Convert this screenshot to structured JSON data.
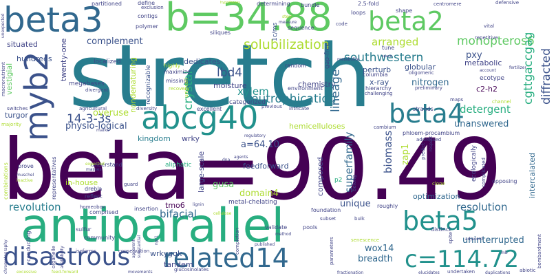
{
  "palette": {
    "dark_purple": "#440154",
    "indigo": "#3b528b",
    "blue": "#31688e",
    "teal": "#287d8e",
    "teal_green": "#21918c",
    "green": "#28ae80",
    "light_green": "#5ec962",
    "yellow_green": "#addc30",
    "yellow": "#fde725",
    "grey_blue": "#414487"
  },
  "words": [
    {
      "text": "stretch",
      "color": "#287d8e",
      "size": 126
    },
    {
      "text": "beta=90.49",
      "color": "#440154",
      "size": 120
    },
    {
      "text": "antiparallel",
      "color": "#28ae80",
      "size": 70
    },
    {
      "text": "beta3",
      "color": "#31688e",
      "size": 52
    },
    {
      "text": "b=34.88",
      "color": "#5ec962",
      "size": 56
    },
    {
      "text": "abcg40",
      "color": "#21918c",
      "size": 48
    },
    {
      "text": "myb2",
      "color": "#3b528b",
      "size": 48
    },
    {
      "text": "beta2",
      "color": "#5ec962",
      "size": 40
    },
    {
      "text": "beta4",
      "color": "#287d8e",
      "size": 40
    },
    {
      "text": "beta5",
      "color": "#21918c",
      "size": 40
    },
    {
      "text": "disastrous",
      "color": "#3b528b",
      "size": 40
    },
    {
      "text": "related14",
      "color": "#31688e",
      "size": 40
    },
    {
      "text": "c=114.72",
      "color": "#21918c",
      "size": 36
    },
    {
      "text": "monopteros6",
      "color": "#5ec962",
      "size": 18
    },
    {
      "text": "solubilization",
      "color": "#addc30",
      "size": 20
    },
    {
      "text": "southwestern",
      "color": "#287d8e",
      "size": 18
    },
    {
      "text": "cgttgaccgag",
      "color": "#28ae80",
      "size": 18
    },
    {
      "text": "diffracted",
      "color": "#3b528b",
      "size": 18
    },
    {
      "text": "arranged",
      "color": "#addc30",
      "size": 16
    },
    {
      "text": "metabolic",
      "color": "#414487",
      "size": 12
    },
    {
      "text": "pxy",
      "color": "#3b528b",
      "size": 14
    },
    {
      "text": "eutrophication",
      "color": "#287d8e",
      "size": 18
    },
    {
      "text": "lbd4",
      "color": "#3b528b",
      "size": 18
    },
    {
      "text": "xylem",
      "color": "#21918c",
      "size": 16
    },
    {
      "text": "moisture",
      "color": "#414487",
      "size": 12
    },
    {
      "text": "chemistry",
      "color": "#414487",
      "size": 12
    },
    {
      "text": "perturb",
      "color": "#3b528b",
      "size": 12
    },
    {
      "text": "globular",
      "color": "#3b528b",
      "size": 12
    },
    {
      "text": "x-ray",
      "color": "#3b528b",
      "size": 12
    },
    {
      "text": "nitrogen",
      "color": "#31688e",
      "size": 14
    },
    {
      "text": "c2-h2",
      "color": "#440154",
      "size": 12
    },
    {
      "text": "ecotype",
      "color": "#414487",
      "size": 10
    },
    {
      "text": "detergent",
      "color": "#28ae80",
      "size": 16
    },
    {
      "text": "unanswered",
      "color": "#31688e",
      "size": 14
    },
    {
      "text": "hemicelluloses",
      "color": "#addc30",
      "size": 12
    },
    {
      "text": "14-3-3s",
      "color": "#3b528b",
      "size": 18
    },
    {
      "text": "physio-logical",
      "color": "#3b528b",
      "size": 14
    },
    {
      "text": "kingdom",
      "color": "#287d8e",
      "size": 12
    },
    {
      "text": "wrky",
      "color": "#414487",
      "size": 12
    },
    {
      "text": "a=64.10",
      "color": "#3b528b",
      "size": 14
    },
    {
      "text": "feedforward",
      "color": "#3b528b",
      "size": 12
    },
    {
      "text": "overuse",
      "color": "#addc30",
      "size": 14
    },
    {
      "text": "in-house",
      "color": "#addc30",
      "size": 12
    },
    {
      "text": "complement",
      "color": "#3b528b",
      "size": 14
    },
    {
      "text": "dedicates",
      "color": "#3b528b",
      "size": 12
    },
    {
      "text": "situated",
      "color": "#414487",
      "size": 12
    },
    {
      "text": "hundreds",
      "color": "#3b528b",
      "size": 12
    },
    {
      "text": "twenty-one",
      "color": "#414487",
      "size": 12
    },
    {
      "text": "vestigial",
      "color": "#5ec962",
      "size": 12
    },
    {
      "text": "crystal",
      "color": "#28ae80",
      "size": 18
    },
    {
      "text": "lineage",
      "color": "#31688e",
      "size": 18
    },
    {
      "text": "superfamily",
      "color": "#31688e",
      "size": 16
    },
    {
      "text": "biomass",
      "color": "#3b528b",
      "size": 16
    },
    {
      "text": "gusa",
      "color": "#5ec962",
      "size": 14
    },
    {
      "text": "domain4",
      "color": "#addc30",
      "size": 14
    },
    {
      "text": "revolution",
      "color": "#287d8e",
      "size": 16
    },
    {
      "text": "bifacial",
      "color": "#31688e",
      "size": 16
    },
    {
      "text": "resolution",
      "color": "#31688e",
      "size": 16
    },
    {
      "text": "uninterrupted",
      "color": "#31688e",
      "size": 14
    },
    {
      "text": "wox14",
      "color": "#31688e",
      "size": 14
    },
    {
      "text": "breadth",
      "color": "#31688e",
      "size": 14
    },
    {
      "text": "tandem",
      "color": "#414487",
      "size": 12
    },
    {
      "text": "wrkygqk",
      "color": "#3b528b",
      "size": 12
    },
    {
      "text": "tmo6",
      "color": "#440154",
      "size": 12
    },
    {
      "text": "large-scale",
      "color": "#414487",
      "size": 12
    },
    {
      "text": "composed",
      "color": "#414487",
      "size": 12
    },
    {
      "text": "unique",
      "color": "#3b528b",
      "size": 14
    },
    {
      "text": "zap1",
      "color": "#addc30",
      "size": 14
    },
    {
      "text": "optimization",
      "color": "#31688e",
      "size": 12
    },
    {
      "text": "ecologically",
      "color": "#414487",
      "size": 10
    },
    {
      "text": "intercalated",
      "color": "#31688e",
      "size": 12
    },
    {
      "text": "metal-chelating",
      "color": "#414487",
      "size": 10
    },
    {
      "text": "aliphatic",
      "color": "#28ae80",
      "size": 10
    },
    {
      "text": "p2",
      "color": "#28ae80",
      "size": 10
    },
    {
      "text": "nondenaturing",
      "color": "#addc30",
      "size": 12
    },
    {
      "text": "recognizable",
      "color": "#3b528b",
      "size": 10
    },
    {
      "text": "categorized",
      "color": "#414487",
      "size": 10
    },
    {
      "text": "gap-free",
      "color": "#414487",
      "size": 10
    },
    {
      "text": "partitioned",
      "color": "#414487",
      "size": 9
    },
    {
      "text": "define",
      "color": "#414487",
      "size": 9
    },
    {
      "text": "determining",
      "color": "#414487",
      "size": 9
    },
    {
      "text": "bundle",
      "color": "#414487",
      "size": 9
    },
    {
      "text": "2.5-fold",
      "color": "#414487",
      "size": 9
    },
    {
      "text": "centromere",
      "color": "#414487",
      "size": 8
    },
    {
      "text": "defensive",
      "color": "#414487",
      "size": 8
    },
    {
      "text": "vital",
      "color": "#414487",
      "size": 8
    },
    {
      "text": "polymer",
      "color": "#414487",
      "size": 9
    },
    {
      "text": "sequence",
      "color": "#414487",
      "size": 9
    },
    {
      "text": "loops",
      "color": "#414487",
      "size": 9
    },
    {
      "text": "shape",
      "color": "#414487",
      "size": 9
    },
    {
      "text": "code",
      "color": "#414487",
      "size": 8
    },
    {
      "text": "repetitive",
      "color": "#414487",
      "size": 8
    },
    {
      "text": "tune",
      "color": "#414487",
      "size": 9
    },
    {
      "text": "siliques",
      "color": "#414487",
      "size": 9
    },
    {
      "text": "contigs",
      "color": "#414487",
      "size": 9
    },
    {
      "text": "exclusion",
      "color": "#414487",
      "size": 8
    },
    {
      "text": "1c/ms",
      "color": "#3b528b",
      "size": 10
    },
    {
      "text": "megabases",
      "color": "#414487",
      "size": 10
    },
    {
      "text": "localized",
      "color": "#414487",
      "size": 10
    },
    {
      "text": "maximize",
      "color": "#414487",
      "size": 9
    },
    {
      "text": "missing",
      "color": "#414487",
      "size": 9
    },
    {
      "text": "random",
      "color": "#414487",
      "size": 9
    },
    {
      "text": "environment",
      "color": "#414487",
      "size": 9
    },
    {
      "text": "preliminary",
      "color": "#414487",
      "size": 8
    },
    {
      "text": "hierarchy",
      "color": "#414487",
      "size": 9
    },
    {
      "text": "challenging",
      "color": "#414487",
      "size": 8
    },
    {
      "text": "columbia",
      "color": "#414487",
      "size": 9
    },
    {
      "text": "oligomeric",
      "color": "#414487",
      "size": 8
    },
    {
      "text": "account",
      "color": "#414487",
      "size": 7
    },
    {
      "text": "fertilizer",
      "color": "#414487",
      "size": 7
    },
    {
      "text": "unexpected",
      "color": "#414487",
      "size": 7
    },
    {
      "text": "macronutrient",
      "color": "#414487",
      "size": 8
    },
    {
      "text": "divergent",
      "color": "#414487",
      "size": 8
    },
    {
      "text": "recovery",
      "color": "#addc30",
      "size": 8
    },
    {
      "text": "highly",
      "color": "#addc30",
      "size": 9
    },
    {
      "text": "unit-cell",
      "color": "#addc30",
      "size": 8
    },
    {
      "text": "metabolite",
      "color": "#414487",
      "size": 7
    },
    {
      "text": "stem",
      "color": "#addc30",
      "size": 7
    },
    {
      "text": "measure",
      "color": "#414487",
      "size": 7
    },
    {
      "text": "turgor",
      "color": "#3b528b",
      "size": 12
    },
    {
      "text": "switches",
      "color": "#414487",
      "size": 8
    },
    {
      "text": "majority",
      "color": "#addc30",
      "size": 8
    },
    {
      "text": "agricultural",
      "color": "#414487",
      "size": 8
    },
    {
      "text": "diversity",
      "color": "#414487",
      "size": 8
    },
    {
      "text": "excellent",
      "color": "#414487",
      "size": 9
    },
    {
      "text": "previous",
      "color": "#414487",
      "size": 8
    },
    {
      "text": "intricate",
      "color": "#414487",
      "size": 8
    },
    {
      "text": "strands",
      "color": "#414487",
      "size": 9
    },
    {
      "text": "maps",
      "color": "#414487",
      "size": 8
    },
    {
      "text": "channel",
      "color": "#addc30",
      "size": 8
    },
    {
      "text": "cambium",
      "color": "#414487",
      "size": 8
    },
    {
      "text": "phloem-procambium",
      "color": "#414487",
      "size": 9
    },
    {
      "text": "addressed",
      "color": "#414487",
      "size": 8
    },
    {
      "text": "predict",
      "color": "#414487",
      "size": 8
    },
    {
      "text": "respect",
      "color": "#414487",
      "size": 7
    },
    {
      "text": "regulatory",
      "color": "#414487",
      "size": 7
    },
    {
      "text": "agents",
      "color": "#414487",
      "size": 7
    },
    {
      "text": "dna",
      "color": "#414487",
      "size": 7
    },
    {
      "text": "marks",
      "color": "#414487",
      "size": 7
    },
    {
      "text": "understand",
      "color": "#414487",
      "size": 9
    },
    {
      "text": "prove",
      "color": "#414487",
      "size": 9
    },
    {
      "text": "muschel",
      "color": "#414487",
      "size": 7
    },
    {
      "text": "inactive",
      "color": "#addc30",
      "size": 7
    },
    {
      "text": "combinations",
      "color": "#addc30",
      "size": 9
    },
    {
      "text": "representatives",
      "color": "#414487",
      "size": 9
    },
    {
      "text": "expected",
      "color": "#addc30",
      "size": 7
    },
    {
      "text": "masses",
      "color": "#414487",
      "size": 7
    },
    {
      "text": "drebla",
      "color": "#414487",
      "size": 9
    },
    {
      "text": "reflect",
      "color": "#414487",
      "size": 9
    },
    {
      "text": "guard",
      "color": "#414487",
      "size": 8
    },
    {
      "text": "homeobox",
      "color": "#414487",
      "size": 8
    },
    {
      "text": "comprised",
      "color": "#414487",
      "size": 9
    },
    {
      "text": "insertion",
      "color": "#414487",
      "size": 9
    },
    {
      "text": "lignin",
      "color": "#414487",
      "size": 7
    },
    {
      "text": "belong",
      "color": "#414487",
      "size": 8
    },
    {
      "text": "clone",
      "color": "#addc30",
      "size": 8
    },
    {
      "text": "opposing",
      "color": "#414487",
      "size": 9
    },
    {
      "text": "complicated",
      "color": "#414487",
      "size": 8
    },
    {
      "text": "roughly",
      "color": "#414487",
      "size": 9
    },
    {
      "text": "foundation",
      "color": "#414487",
      "size": 9
    },
    {
      "text": "cellulose",
      "color": "#addc30",
      "size": 7
    },
    {
      "text": "bulk",
      "color": "#414487",
      "size": 8
    },
    {
      "text": "subset",
      "color": "#414487",
      "size": 8
    },
    {
      "text": "distinct",
      "color": "#414487",
      "size": 9
    },
    {
      "text": "bombardment",
      "color": "#414487",
      "size": 8
    },
    {
      "text": "conducting",
      "color": "#414487",
      "size": 9
    },
    {
      "text": "organelle",
      "color": "#414487",
      "size": 8
    },
    {
      "text": "availability",
      "color": "#414487",
      "size": 7
    },
    {
      "text": "sulfur",
      "color": "#414487",
      "size": 9
    },
    {
      "text": "community",
      "color": "#414487",
      "size": 9
    },
    {
      "text": "apparent",
      "color": "#414487",
      "size": 7
    },
    {
      "text": "substantial",
      "color": "#414487",
      "size": 7
    },
    {
      "text": "npr1",
      "color": "#414487",
      "size": 7
    },
    {
      "text": "validate",
      "color": "#414487",
      "size": 9
    },
    {
      "text": "method",
      "color": "#414487",
      "size": 7
    },
    {
      "text": "pools",
      "color": "#414487",
      "size": 9
    },
    {
      "text": "completion",
      "color": "#414487",
      "size": 8
    },
    {
      "text": "parameters",
      "color": "#414487",
      "size": 8
    },
    {
      "text": "published",
      "color": "#414487",
      "size": 7
    },
    {
      "text": "adjacent",
      "color": "#414487",
      "size": 7
    },
    {
      "text": "spite",
      "color": "#414487",
      "size": 8
    },
    {
      "text": "chromatography",
      "color": "#414487",
      "size": 7
    },
    {
      "text": "isoforms",
      "color": "#414487",
      "size": 8
    },
    {
      "text": "conservation",
      "color": "#414487",
      "size": 8
    },
    {
      "text": "excessive",
      "color": "#addc30",
      "size": 7
    },
    {
      "text": "feed-forward",
      "color": "#addc30",
      "size": 7
    },
    {
      "text": "movements",
      "color": "#414487",
      "size": 7
    },
    {
      "text": "glucosinolates",
      "color": "#414487",
      "size": 8
    },
    {
      "text": "senescence",
      "color": "#addc30",
      "size": 8
    },
    {
      "text": "fractionation",
      "color": "#414487",
      "size": 7
    },
    {
      "text": "elucidates",
      "color": "#414487",
      "size": 7
    },
    {
      "text": "undertaken",
      "color": "#414487",
      "size": 8
    },
    {
      "text": "duplications",
      "color": "#414487",
      "size": 7
    },
    {
      "text": "abiotic",
      "color": "#414487",
      "size": 8
    },
    {
      "text": "mb",
      "color": "#414487",
      "size": 7
    },
    {
      "text": "space",
      "color": "#414487",
      "size": 6
    },
    {
      "text": "hypotheses",
      "color": "#addc30",
      "size": 6
    }
  ]
}
